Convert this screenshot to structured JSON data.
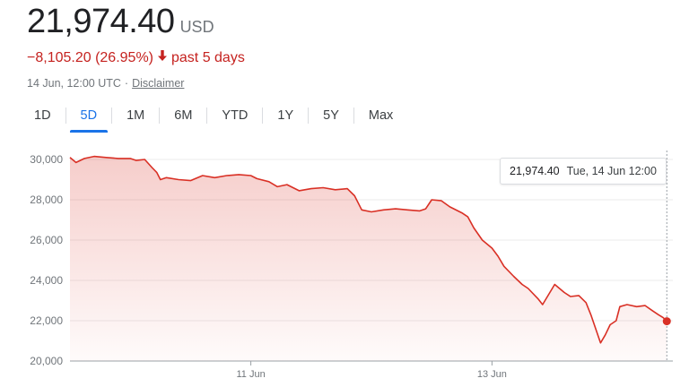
{
  "header": {
    "price": "21,974.40",
    "currency": "USD",
    "change": "−8,105.20 (26.95%)",
    "change_period": "past 5 days",
    "timestamp": "14 Jun, 12:00 UTC",
    "separator": "·",
    "disclaimer": "Disclaimer"
  },
  "tabs": [
    {
      "label": "1D",
      "active": false
    },
    {
      "label": "5D",
      "active": true
    },
    {
      "label": "1M",
      "active": false
    },
    {
      "label": "6M",
      "active": false
    },
    {
      "label": "YTD",
      "active": false
    },
    {
      "label": "1Y",
      "active": false
    },
    {
      "label": "5Y",
      "active": false
    },
    {
      "label": "Max",
      "active": false
    }
  ],
  "tooltip": {
    "value": "21,974.40",
    "date": "Tue, 14 Jun 12:00"
  },
  "colors": {
    "line": "#d93025",
    "accent": "#1a73e8",
    "negative": "#c5221f"
  },
  "chart_data": {
    "type": "area",
    "ylim": [
      20000,
      30000
    ],
    "yticks": [
      {
        "value": 30000,
        "label": "30,000"
      },
      {
        "value": 28000,
        "label": "28,000"
      },
      {
        "value": 26000,
        "label": "26,000"
      },
      {
        "value": 24000,
        "label": "24,000"
      },
      {
        "value": 22000,
        "label": "22,000"
      },
      {
        "value": 20000,
        "label": "20,000"
      }
    ],
    "xlim": [
      9.5,
      14.5
    ],
    "xticks": [
      {
        "value": 11,
        "label": "11 Jun"
      },
      {
        "value": 13,
        "label": "13 Jun"
      }
    ],
    "series": [
      {
        "points": [
          [
            9.5,
            30100
          ],
          [
            9.55,
            29850
          ],
          [
            9.62,
            30050
          ],
          [
            9.7,
            30150
          ],
          [
            9.8,
            30100
          ],
          [
            9.9,
            30050
          ],
          [
            10.0,
            30050
          ],
          [
            10.05,
            29950
          ],
          [
            10.12,
            30000
          ],
          [
            10.18,
            29600
          ],
          [
            10.22,
            29350
          ],
          [
            10.25,
            29000
          ],
          [
            10.3,
            29100
          ],
          [
            10.4,
            29000
          ],
          [
            10.5,
            28950
          ],
          [
            10.6,
            29200
          ],
          [
            10.7,
            29100
          ],
          [
            10.8,
            29200
          ],
          [
            10.9,
            29250
          ],
          [
            11.0,
            29200
          ],
          [
            11.05,
            29050
          ],
          [
            11.15,
            28900
          ],
          [
            11.22,
            28650
          ],
          [
            11.3,
            28750
          ],
          [
            11.4,
            28450
          ],
          [
            11.5,
            28550
          ],
          [
            11.6,
            28600
          ],
          [
            11.7,
            28500
          ],
          [
            11.8,
            28550
          ],
          [
            11.86,
            28200
          ],
          [
            11.92,
            27500
          ],
          [
            12.0,
            27400
          ],
          [
            12.1,
            27500
          ],
          [
            12.2,
            27550
          ],
          [
            12.3,
            27500
          ],
          [
            12.4,
            27450
          ],
          [
            12.45,
            27550
          ],
          [
            12.5,
            28000
          ],
          [
            12.58,
            27950
          ],
          [
            12.65,
            27650
          ],
          [
            12.75,
            27350
          ],
          [
            12.8,
            27150
          ],
          [
            12.85,
            26600
          ],
          [
            12.92,
            26000
          ],
          [
            13.0,
            25600
          ],
          [
            13.05,
            25200
          ],
          [
            13.1,
            24700
          ],
          [
            13.18,
            24200
          ],
          [
            13.25,
            23800
          ],
          [
            13.3,
            23600
          ],
          [
            13.38,
            23100
          ],
          [
            13.42,
            22800
          ],
          [
            13.48,
            23400
          ],
          [
            13.52,
            23800
          ],
          [
            13.6,
            23400
          ],
          [
            13.65,
            23200
          ],
          [
            13.72,
            23250
          ],
          [
            13.78,
            22900
          ],
          [
            13.82,
            22300
          ],
          [
            13.86,
            21600
          ],
          [
            13.9,
            20900
          ],
          [
            13.94,
            21300
          ],
          [
            13.98,
            21800
          ],
          [
            14.03,
            22000
          ],
          [
            14.06,
            22700
          ],
          [
            14.12,
            22800
          ],
          [
            14.2,
            22700
          ],
          [
            14.27,
            22750
          ],
          [
            14.33,
            22500
          ],
          [
            14.38,
            22300
          ],
          [
            14.42,
            22150
          ],
          [
            14.45,
            21974.4
          ]
        ]
      }
    ]
  }
}
